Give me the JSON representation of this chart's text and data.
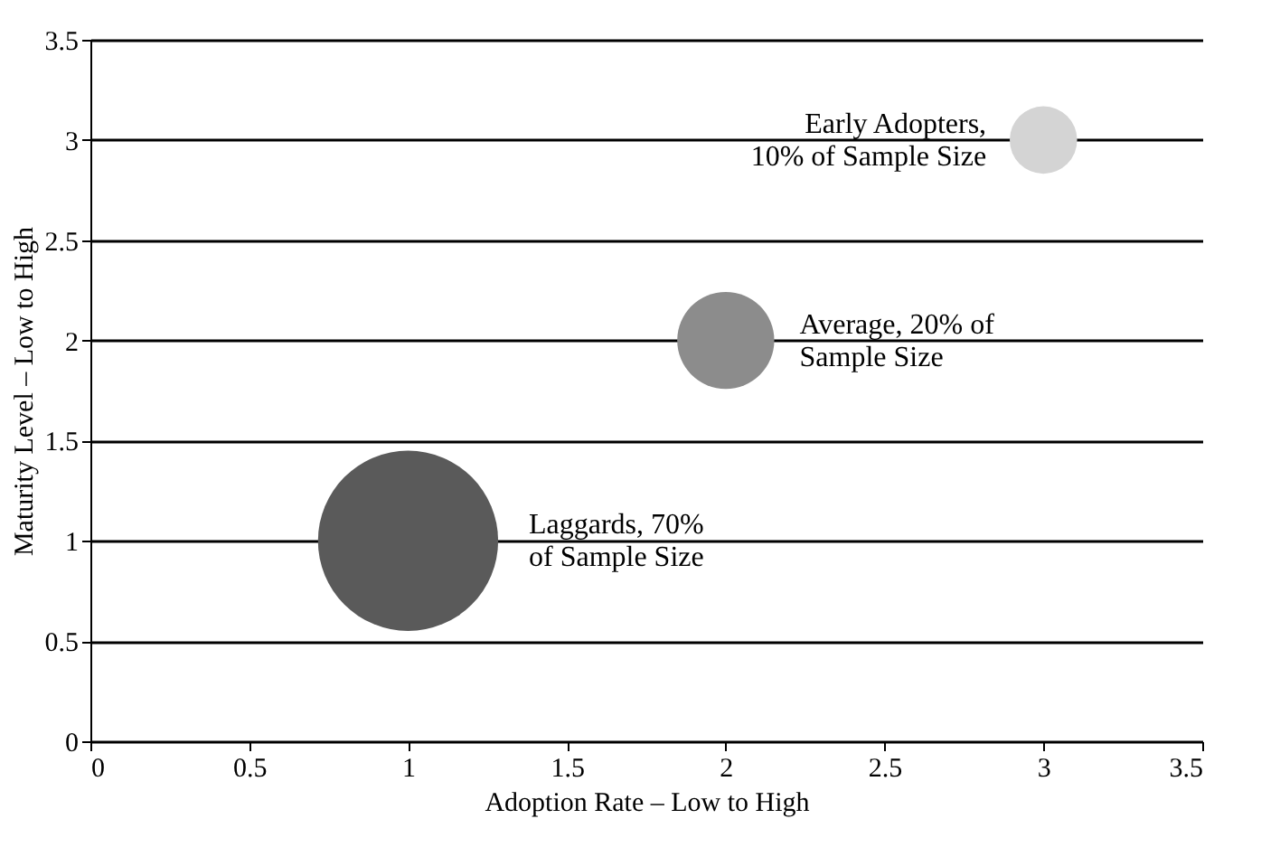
{
  "chart_data": {
    "type": "bubble",
    "xlabel": "Adoption Rate – Low to High",
    "ylabel": "Maturity Level – Low to High",
    "series": [
      {
        "color": "#d4d4d4",
        "x": [
          3
        ],
        "values": [
          3
        ],
        "sizes": [
          0.14
        ]
      },
      {
        "color": "#8c8c8c",
        "x": [
          2
        ],
        "values": [
          2
        ],
        "sizes": [
          0.29
        ]
      },
      {
        "color": "#5a5a5a",
        "x": [
          1
        ],
        "values": [
          1
        ],
        "sizes": [
          1
        ]
      }
    ],
    "xlim": [
      0,
      3.5
    ],
    "xticks": [
      0,
      0.5,
      1,
      1.5,
      2,
      2.5,
      3,
      3.5
    ],
    "ylim": [
      0,
      3.5
    ],
    "yticks": [
      0,
      0.5,
      1,
      1.5,
      2,
      2.5,
      3,
      3.5
    ],
    "grid": "y",
    "annotations": [
      "Early Adopters,\n10% of Sample Size",
      "Average, 20% of\nSample Size",
      "Laggards, 70%\nof Sample Size"
    ]
  }
}
